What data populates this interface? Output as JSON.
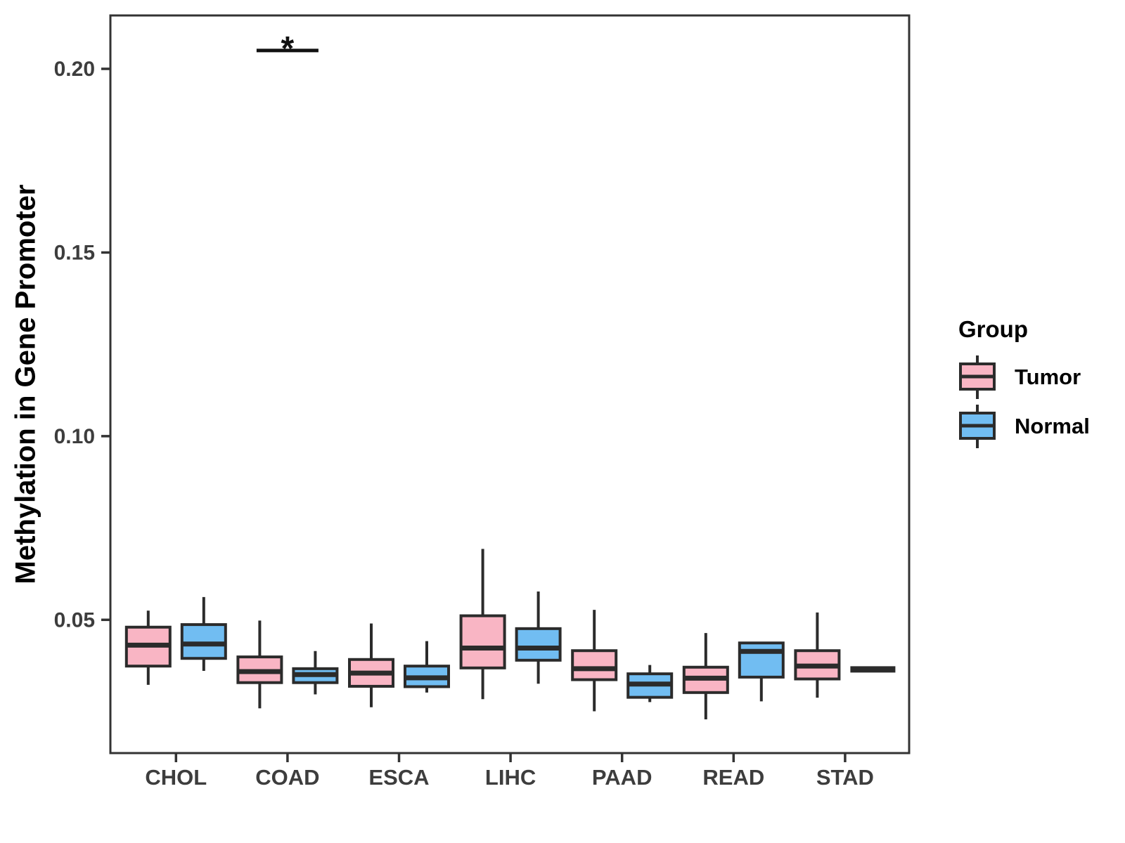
{
  "figure": {
    "legend": {
      "title": "Group",
      "items": [
        {
          "label": "Tumor",
          "color": "#F9B5C4"
        },
        {
          "label": "Normal",
          "color": "#71BDF2"
        }
      ]
    }
  },
  "chart_data": {
    "type": "boxplot",
    "title": "",
    "xlabel": "",
    "ylabel": "Methylation in Gene Promoter",
    "categories": [
      "CHOL",
      "COAD",
      "ESCA",
      "LIHC",
      "PAAD",
      "READ",
      "STAD"
    ],
    "y_ticks": [
      0.05,
      0.1,
      0.15,
      0.2
    ],
    "y_tick_labels": [
      "0.05",
      "0.10",
      "0.15",
      "0.20"
    ],
    "ylim": [
      0.013,
      0.215
    ],
    "grid": false,
    "panel_border": true,
    "whisker_caps": false,
    "legend_position": "right",
    "colors": {
      "tumor": "#F9B5C4",
      "normal": "#71BDF2",
      "box_border": "#2B2B2B",
      "median": "#2B2B2B",
      "axis": "#333333",
      "tick_label": "#3D3D3D",
      "annotation": "#111111"
    },
    "groups": [
      {
        "name": "Tumor",
        "color": "#F9B5C4"
      },
      {
        "name": "Normal",
        "color": "#71BDF2"
      }
    ],
    "series": [
      {
        "group": "Tumor",
        "boxes": [
          {
            "category": "CHOL",
            "low": 0.0323,
            "q1": 0.0374,
            "median": 0.0431,
            "q3": 0.048,
            "high": 0.0525
          },
          {
            "category": "COAD",
            "low": 0.0259,
            "q1": 0.0329,
            "median": 0.0359,
            "q3": 0.0399,
            "high": 0.0498
          },
          {
            "category": "ESCA",
            "low": 0.0262,
            "q1": 0.0319,
            "median": 0.0355,
            "q3": 0.0392,
            "high": 0.049
          },
          {
            "category": "LIHC",
            "low": 0.0284,
            "q1": 0.0369,
            "median": 0.0423,
            "q3": 0.0511,
            "high": 0.0693
          },
          {
            "category": "PAAD",
            "low": 0.0251,
            "q1": 0.0337,
            "median": 0.0367,
            "q3": 0.0416,
            "high": 0.0527
          },
          {
            "category": "READ",
            "low": 0.0229,
            "q1": 0.0302,
            "median": 0.0341,
            "q3": 0.0371,
            "high": 0.0464
          },
          {
            "category": "STAD",
            "low": 0.0288,
            "q1": 0.0339,
            "median": 0.0374,
            "q3": 0.0416,
            "high": 0.052
          }
        ]
      },
      {
        "group": "Normal",
        "boxes": [
          {
            "category": "CHOL",
            "low": 0.0361,
            "q1": 0.0395,
            "median": 0.0434,
            "q3": 0.0487,
            "high": 0.0562
          },
          {
            "category": "COAD",
            "low": 0.0297,
            "q1": 0.0329,
            "median": 0.0351,
            "q3": 0.0367,
            "high": 0.0415
          },
          {
            "category": "ESCA",
            "low": 0.0302,
            "q1": 0.0318,
            "median": 0.0342,
            "q3": 0.0374,
            "high": 0.0442
          },
          {
            "category": "LIHC",
            "low": 0.0326,
            "q1": 0.039,
            "median": 0.0423,
            "q3": 0.0476,
            "high": 0.0577
          },
          {
            "category": "PAAD",
            "low": 0.0276,
            "q1": 0.0289,
            "median": 0.0325,
            "q3": 0.0353,
            "high": 0.0377
          },
          {
            "category": "READ",
            "low": 0.0278,
            "q1": 0.0344,
            "median": 0.0414,
            "q3": 0.0437,
            "high": 0.0437
          },
          {
            "category": "STAD",
            "low": 0.0365,
            "q1": 0.0365,
            "median": 0.0365,
            "q3": 0.0365,
            "high": 0.0365
          }
        ]
      }
    ],
    "annotations": [
      {
        "type": "significance",
        "category": "COAD",
        "between": [
          "Tumor",
          "Normal"
        ],
        "label": "*",
        "y": 0.205
      }
    ]
  }
}
